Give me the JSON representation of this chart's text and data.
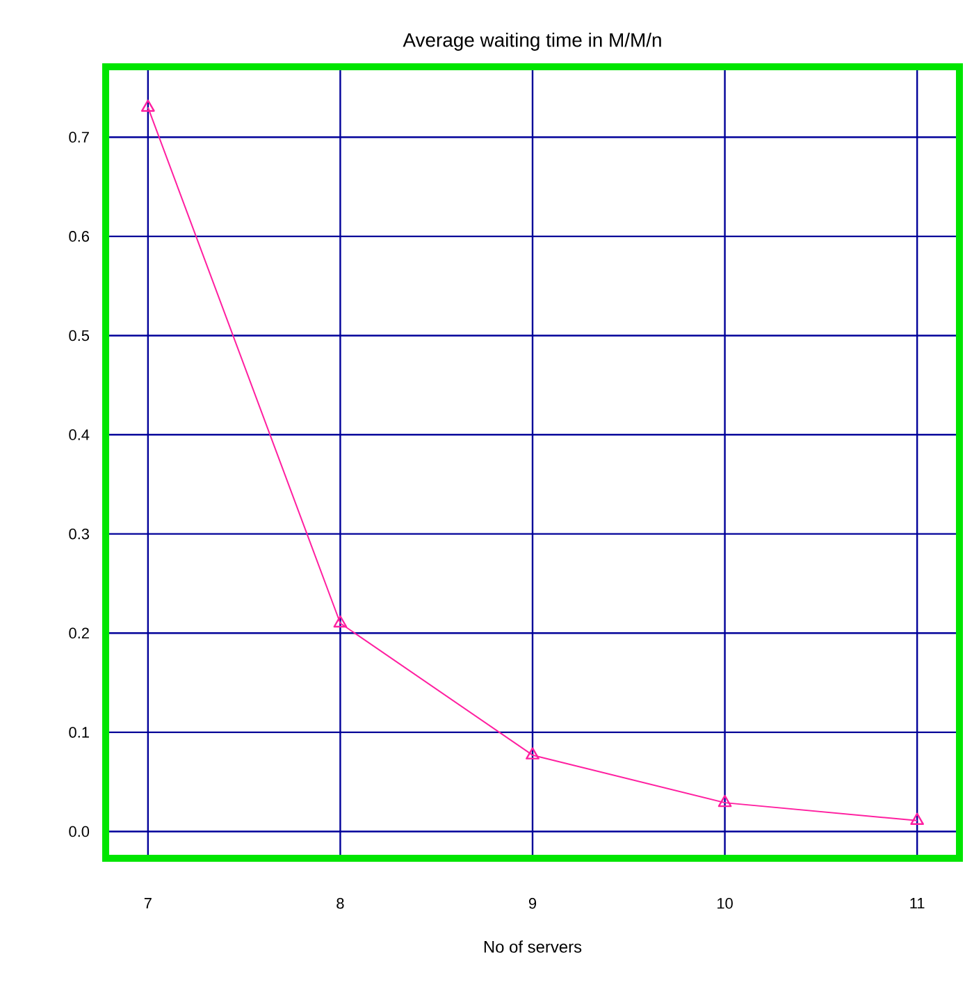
{
  "chart_data": {
    "type": "line",
    "title": "Average waiting time in M/M/n",
    "xlabel": "No of servers",
    "x": [
      7,
      8,
      9,
      10,
      11
    ],
    "series": [
      {
        "color": "#ff1fa0",
        "values": [
          0.73,
          0.21,
          0.077,
          0.029,
          0.011
        ]
      }
    ],
    "xlim": [
      6.78,
      11.22
    ],
    "ylim": [
      -0.027,
      0.771
    ],
    "xticks": [
      7,
      8,
      9,
      10,
      11
    ],
    "yticks": [
      {
        "value": 0,
        "label": "0.0"
      },
      0.1,
      0.2,
      0.3,
      0.4,
      0.5,
      0.6,
      0.7
    ],
    "grid": true,
    "marker": "triangle",
    "line_style": "solid"
  }
}
